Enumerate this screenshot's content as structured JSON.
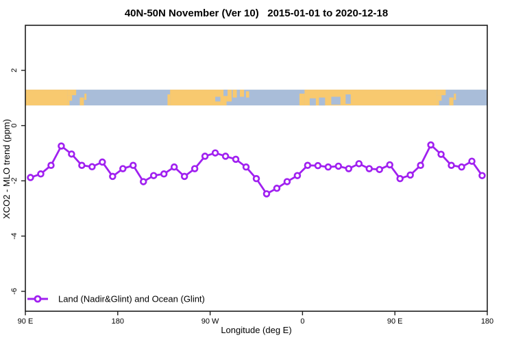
{
  "chart_data": {
    "type": "line",
    "title": "40N-50N November (Ver 10)   2015-01-01 to 2020-12-18",
    "xlabel": "Longitude (deg E)",
    "ylabel": "XCO2 - MLO trend (ppm)",
    "xlim": [
      90,
      540
    ],
    "ylim": [
      -6.72,
      3.63
    ],
    "grid": false,
    "x_ticks": [
      {
        "v": 90,
        "label": "90 E"
      },
      {
        "v": 180,
        "label": "180"
      },
      {
        "v": 270,
        "label": "90 W"
      },
      {
        "v": 360,
        "label": "0"
      },
      {
        "v": 450,
        "label": "90 E"
      },
      {
        "v": 540,
        "label": "180"
      }
    ],
    "y_ticks": [
      {
        "v": 2,
        "label": "2"
      },
      {
        "v": 0,
        "label": "0"
      },
      {
        "v": -2,
        "label": "-2"
      },
      {
        "v": -4,
        "label": "-4"
      },
      {
        "v": -6,
        "label": "-6"
      }
    ],
    "legend": {
      "position": "bottom-left",
      "label": "Land (Nadir&Glint) and Ocean (Glint)"
    },
    "series": [
      {
        "name": "Land (Nadir&Glint) and Ocean (Glint)",
        "color": "#A020F0",
        "marker": "open-circle",
        "x": [
          95,
          105,
          115,
          125,
          135,
          145,
          155,
          165,
          175,
          185,
          195,
          205,
          215,
          225,
          235,
          245,
          255,
          265,
          275,
          285,
          295,
          305,
          315,
          325,
          335,
          345,
          355,
          365,
          375,
          385,
          395,
          405,
          415,
          425,
          435,
          445,
          455,
          465,
          475,
          485,
          495,
          505,
          515,
          525,
          535
        ],
        "values": [
          -1.88,
          -1.75,
          -1.44,
          -0.74,
          -1.03,
          -1.44,
          -1.49,
          -1.32,
          -1.84,
          -1.56,
          -1.44,
          -2.03,
          -1.81,
          -1.75,
          -1.5,
          -1.84,
          -1.56,
          -1.11,
          -0.99,
          -1.11,
          -1.22,
          -1.5,
          -1.92,
          -2.47,
          -2.27,
          -2.03,
          -1.81,
          -1.44,
          -1.45,
          -1.5,
          -1.47,
          -1.56,
          -1.38,
          -1.56,
          -1.59,
          -1.42,
          -1.92,
          -1.79,
          -1.44,
          -0.7,
          -1.04,
          -1.44,
          -1.5,
          -1.29,
          -1.81
        ]
      }
    ],
    "map_band": {
      "value_top": 1.3,
      "value_bottom": 0.73,
      "ocean_color": "#A9BDD9",
      "land_color": "#F8C96F",
      "land_segments": [
        [
          90,
          131,
          0,
          1
        ],
        [
          131,
          139.5,
          0,
          0.35
        ],
        [
          131,
          135.5,
          0.35,
          0.7
        ],
        [
          131,
          133,
          0.7,
          1
        ],
        [
          143,
          147,
          0.5,
          1
        ],
        [
          147.5,
          149.5,
          0.25,
          0.65
        ],
        [
          228.5,
          231,
          0.3,
          1
        ],
        [
          231,
          286,
          0,
          1
        ],
        [
          286,
          291,
          0,
          0.75
        ],
        [
          292,
          296,
          0,
          0.5
        ],
        [
          299,
          303,
          0,
          0.45
        ],
        [
          305,
          308,
          0.1,
          0.5
        ],
        [
          357,
          362,
          0.25,
          1
        ],
        [
          362,
          491,
          0,
          1
        ],
        [
          491,
          499.5,
          0,
          0.35
        ],
        [
          491,
          495.5,
          0.35,
          0.7
        ],
        [
          491,
          493,
          0.7,
          1
        ],
        [
          503,
          507,
          0.5,
          1
        ],
        [
          507.5,
          509.5,
          0.25,
          0.65
        ]
      ],
      "ocean_notches": [
        [
          275,
          280,
          0.45,
          0.75
        ],
        [
          283,
          287,
          0,
          0.4
        ],
        [
          367,
          373,
          0.55,
          1
        ],
        [
          376,
          382,
          0.5,
          1
        ],
        [
          388,
          397,
          0.45,
          0.95
        ],
        [
          402,
          407,
          0.3,
          0.9
        ]
      ]
    }
  }
}
